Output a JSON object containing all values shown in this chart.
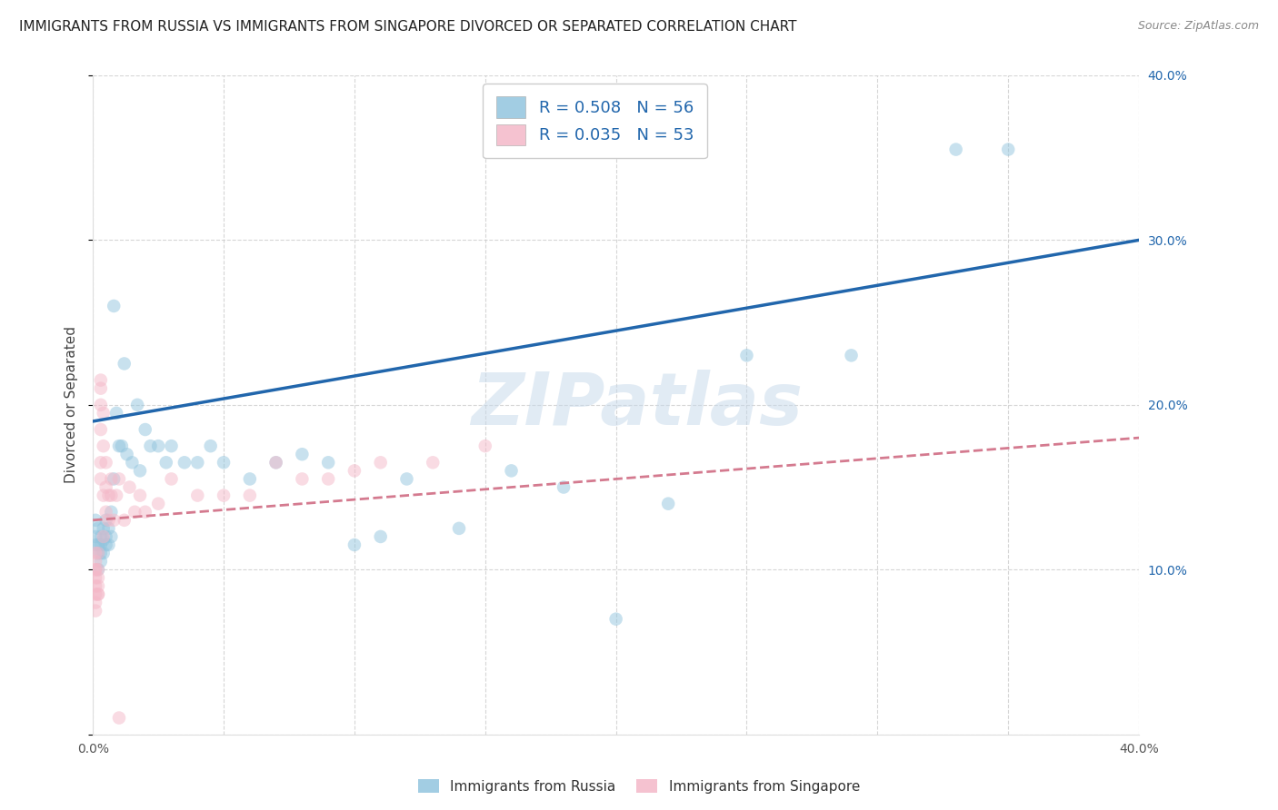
{
  "title": "IMMIGRANTS FROM RUSSIA VS IMMIGRANTS FROM SINGAPORE DIVORCED OR SEPARATED CORRELATION CHART",
  "source": "Source: ZipAtlas.com",
  "ylabel": "Divorced or Separated",
  "xlim": [
    0.0,
    0.4
  ],
  "ylim": [
    0.0,
    0.4
  ],
  "watermark": "ZIPatlas",
  "legend_entries": [
    {
      "label": "Immigrants from Russia",
      "R": "0.508",
      "N": "56",
      "color": "#92c5de"
    },
    {
      "label": "Immigrants from Singapore",
      "R": "0.035",
      "N": "53",
      "color": "#f4b8c8"
    }
  ],
  "russia_x": [
    0.001,
    0.001,
    0.001,
    0.002,
    0.002,
    0.002,
    0.002,
    0.003,
    0.003,
    0.003,
    0.003,
    0.004,
    0.004,
    0.004,
    0.005,
    0.005,
    0.005,
    0.006,
    0.006,
    0.007,
    0.007,
    0.008,
    0.008,
    0.009,
    0.01,
    0.011,
    0.012,
    0.013,
    0.015,
    0.017,
    0.018,
    0.02,
    0.022,
    0.025,
    0.028,
    0.03,
    0.035,
    0.04,
    0.045,
    0.05,
    0.06,
    0.07,
    0.08,
    0.09,
    0.1,
    0.11,
    0.12,
    0.14,
    0.16,
    0.18,
    0.2,
    0.22,
    0.25,
    0.29,
    0.33,
    0.35
  ],
  "russia_y": [
    0.12,
    0.115,
    0.13,
    0.1,
    0.11,
    0.115,
    0.125,
    0.115,
    0.11,
    0.12,
    0.105,
    0.11,
    0.118,
    0.125,
    0.115,
    0.12,
    0.13,
    0.115,
    0.125,
    0.12,
    0.135,
    0.26,
    0.155,
    0.195,
    0.175,
    0.175,
    0.225,
    0.17,
    0.165,
    0.2,
    0.16,
    0.185,
    0.175,
    0.175,
    0.165,
    0.175,
    0.165,
    0.165,
    0.175,
    0.165,
    0.155,
    0.165,
    0.17,
    0.165,
    0.115,
    0.12,
    0.155,
    0.125,
    0.16,
    0.15,
    0.07,
    0.14,
    0.23,
    0.23,
    0.355,
    0.355
  ],
  "singapore_x": [
    0.001,
    0.001,
    0.001,
    0.001,
    0.001,
    0.001,
    0.001,
    0.001,
    0.001,
    0.002,
    0.002,
    0.002,
    0.002,
    0.002,
    0.002,
    0.003,
    0.003,
    0.003,
    0.003,
    0.003,
    0.003,
    0.004,
    0.004,
    0.004,
    0.004,
    0.005,
    0.005,
    0.005,
    0.006,
    0.006,
    0.007,
    0.007,
    0.008,
    0.009,
    0.01,
    0.012,
    0.014,
    0.016,
    0.018,
    0.02,
    0.025,
    0.03,
    0.04,
    0.05,
    0.06,
    0.07,
    0.08,
    0.09,
    0.1,
    0.11,
    0.13,
    0.15,
    0.01
  ],
  "singapore_y": [
    0.095,
    0.085,
    0.11,
    0.1,
    0.09,
    0.08,
    0.075,
    0.1,
    0.105,
    0.11,
    0.085,
    0.09,
    0.095,
    0.1,
    0.085,
    0.2,
    0.215,
    0.185,
    0.21,
    0.155,
    0.165,
    0.145,
    0.12,
    0.175,
    0.195,
    0.135,
    0.15,
    0.165,
    0.145,
    0.13,
    0.145,
    0.155,
    0.13,
    0.145,
    0.155,
    0.13,
    0.15,
    0.135,
    0.145,
    0.135,
    0.14,
    0.155,
    0.145,
    0.145,
    0.145,
    0.165,
    0.155,
    0.155,
    0.16,
    0.165,
    0.165,
    0.175,
    0.01
  ],
  "russia_color": "#92c5de",
  "singapore_color": "#f4b8c8",
  "russia_line_color": "#2166ac",
  "singapore_line_color": "#d47a8f",
  "russia_line_y0": 0.19,
  "russia_line_y1": 0.3,
  "singapore_line_y0": 0.13,
  "singapore_line_y1": 0.18,
  "background_color": "#ffffff",
  "grid_color": "#cccccc",
  "title_fontsize": 11,
  "axis_label_fontsize": 11,
  "tick_fontsize": 10,
  "marker_size": 110,
  "marker_alpha": 0.5
}
